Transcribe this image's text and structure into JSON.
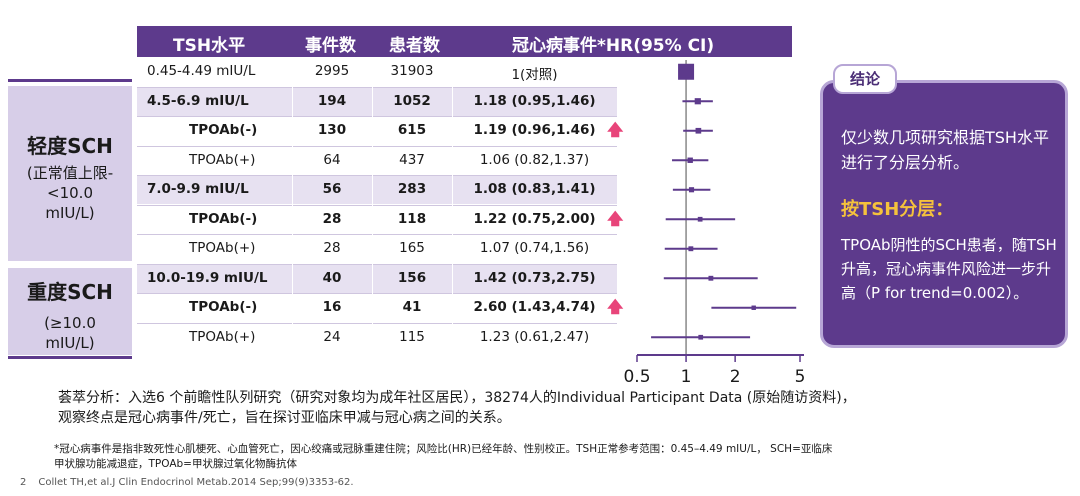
{
  "header": {
    "col_tsh": "TSH水平",
    "col_events": "事件数",
    "col_patients": "患者数",
    "col_hr": "冠心病事件*HR(95% CI)"
  },
  "groups": {
    "mild": {
      "title": "轻度SCH",
      "sub1": "(正常值上限-",
      "sub2": "<10.0",
      "sub3": "mIU/L)"
    },
    "severe": {
      "title": "重度SCH",
      "sub1": "(≥10.0",
      "sub2": "mIU/L)"
    }
  },
  "rows": [
    {
      "label": "0.45-4.49 mIU/L",
      "events": "2995",
      "patients": "31903",
      "hr_text": "1(对照)",
      "arrow": ""
    },
    {
      "label": "4.5-6.9 mIU/L",
      "events": "194",
      "patients": "1052",
      "hr_text": "1.18 (0.95,1.46)",
      "arrow": ""
    },
    {
      "label": "TPOAb(-)",
      "events": "130",
      "patients": "615",
      "hr_text": "1.19 (0.96,1.46)",
      "arrow": "🡅"
    },
    {
      "label": "TPOAb(+)",
      "events": "64",
      "patients": "437",
      "hr_text": "1.06 (0.82,1.37)",
      "arrow": ""
    },
    {
      "label": "7.0-9.9 mIU/L",
      "events": "56",
      "patients": "283",
      "hr_text": "1.08 (0.83,1.41)",
      "arrow": ""
    },
    {
      "label": "TPOAb(-)",
      "events": "28",
      "patients": "118",
      "hr_text": "1.22 (0.75,2.00)",
      "arrow": "🡅"
    },
    {
      "label": "TPOAb(+)",
      "events": "28",
      "patients": "165",
      "hr_text": "1.07 (0.74,1.56)",
      "arrow": ""
    },
    {
      "label": "10.0-19.9 mIU/L",
      "events": "40",
      "patients": "156",
      "hr_text": "1.42 (0.73,2.75)",
      "arrow": ""
    },
    {
      "label": "TPOAb(-)",
      "events": "16",
      "patients": "41",
      "hr_text": "2.60 (1.43,4.74)",
      "arrow": "🡅"
    },
    {
      "label": "TPOAb(+)",
      "events": "24",
      "patients": "115",
      "hr_text": "1.23 (0.61,2.47)",
      "arrow": ""
    }
  ],
  "chart_data": {
    "type": "forest",
    "title": "冠心病事件*HR(95% CI)",
    "x_scale": "log",
    "xlim": [
      0.5,
      5
    ],
    "x_ticks": [
      "0.5",
      "1",
      "2",
      "5"
    ],
    "reference_line": 1,
    "points": [
      {
        "label": "0.45-4.49 mIU/L",
        "hr": 1.0,
        "low": 1.0,
        "high": 1.0,
        "weight": 31903
      },
      {
        "label": "4.5-6.9 mIU/L",
        "hr": 1.18,
        "low": 0.95,
        "high": 1.46,
        "weight": 1052
      },
      {
        "label": "4.5-6.9 TPOAb(-)",
        "hr": 1.19,
        "low": 0.96,
        "high": 1.46,
        "weight": 615
      },
      {
        "label": "4.5-6.9 TPOAb(+)",
        "hr": 1.06,
        "low": 0.82,
        "high": 1.37,
        "weight": 437
      },
      {
        "label": "7.0-9.9 mIU/L",
        "hr": 1.08,
        "low": 0.83,
        "high": 1.41,
        "weight": 283
      },
      {
        "label": "7.0-9.9 TPOAb(-)",
        "hr": 1.22,
        "low": 0.75,
        "high": 2.0,
        "weight": 118
      },
      {
        "label": "7.0-9.9 TPOAb(+)",
        "hr": 1.07,
        "low": 0.74,
        "high": 1.56,
        "weight": 165
      },
      {
        "label": "10.0-19.9 mIU/L",
        "hr": 1.42,
        "low": 0.73,
        "high": 2.75,
        "weight": 156
      },
      {
        "label": "10.0-19.9 TPOAb(-)",
        "hr": 2.6,
        "low": 1.43,
        "high": 4.74,
        "weight": 41
      },
      {
        "label": "10.0-19.9 TPOAb(+)",
        "hr": 1.23,
        "low": 0.61,
        "high": 2.47,
        "weight": 115
      }
    ]
  },
  "conclusion": {
    "tab": "结论",
    "p1": "仅少数几项研究根据TSH水平进行了分层分析。",
    "p2": "按TSH分层：",
    "p3": "TPOAb阴性的SCH患者，随TSH升高，冠心病事件风险进一步升高（P for trend=0.002）。"
  },
  "analysis": {
    "line1": "荟萃分析：入选6 个前瞻性队列研究（研究对象均为成年社区居民），38274人的Individual Participant Data (原始随访资料)，",
    "line2": "观察终点是冠心病事件/死亡，旨在探讨亚临床甲减与冠心病之间的关系。"
  },
  "footnote": {
    "line1": "*冠心病事件是指非致死性心肌梗死、心血管死亡，因心绞痛或冠脉重建住院；风险比(HR)已经年龄、性别校正。TSH正常参考范围：0.45–4.49 mIU/L， SCH=亚临床",
    "line2": "甲状腺功能减退症，TPOAb=甲状腺过氧化物酶抗体"
  },
  "reference": {
    "page": "2",
    "text": "Collet TH,et al.J Clin Endocrinol Metab.2014 Sep;99(9)3353-62."
  },
  "colors": {
    "purple": "#5d3a8c",
    "lavender": "#d7cee8",
    "row_alt": "#e7e1f1",
    "arrow": "#e8457a",
    "gold": "#f5c23c"
  }
}
